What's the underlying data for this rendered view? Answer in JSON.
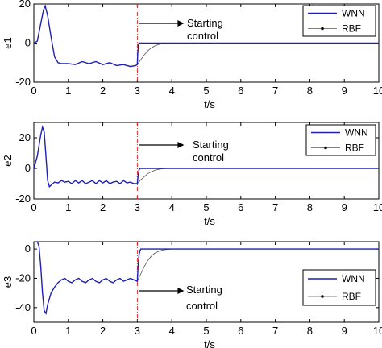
{
  "chart_data": [
    {
      "type": "line",
      "xlabel": "t/s",
      "ylabel": "e1",
      "xlim": [
        0,
        10
      ],
      "ylim": [
        -20,
        20
      ],
      "xticks": [
        "0",
        "1",
        "2",
        "3",
        "4",
        "5",
        "6",
        "7",
        "8",
        "9",
        "10"
      ],
      "yticks": [
        "20",
        "0",
        "-20"
      ],
      "grid": false,
      "legend_position": "top-right",
      "annotation": {
        "text_line1": "Starting",
        "text_line2": "control",
        "x": 3
      },
      "control_start_line": {
        "x": 3,
        "color": "#e03030",
        "style": "dash-dot"
      },
      "series": [
        {
          "name": "WNN",
          "color": "#1f1fb4",
          "x": [
            0,
            0.1,
            0.2,
            0.28,
            0.33,
            0.4,
            0.5,
            0.6,
            0.7,
            0.8,
            1.0,
            1.2,
            1.4,
            1.6,
            1.8,
            2.0,
            2.2,
            2.4,
            2.6,
            2.8,
            2.95,
            3.0,
            3.01,
            3.03,
            3.05,
            3.1,
            3.2,
            4.0,
            5.0,
            6.0,
            7.0,
            8.0,
            9.0,
            10.0
          ],
          "y": [
            0,
            1,
            10,
            17,
            19,
            14,
            3,
            -7,
            -10,
            -10.5,
            -10.5,
            -11,
            -9.5,
            -10.5,
            -9.5,
            -11,
            -10,
            -11.5,
            -11,
            -12,
            -11.5,
            -11,
            -6,
            -1,
            0,
            0,
            0,
            0,
            0,
            0,
            0,
            0,
            0,
            0
          ]
        },
        {
          "name": "RBF",
          "color": "#555555",
          "x": [
            3.0,
            3.1,
            3.2,
            3.3,
            3.4,
            3.5,
            3.6,
            3.7,
            3.8,
            4.0,
            5.0,
            10.0
          ],
          "y": [
            -11,
            -8.5,
            -6,
            -4,
            -2.5,
            -1.5,
            -0.8,
            -0.4,
            -0.2,
            0,
            0,
            0
          ]
        }
      ]
    },
    {
      "type": "line",
      "xlabel": "t/s",
      "ylabel": "e2",
      "xlim": [
        0,
        10
      ],
      "ylim": [
        -20,
        30
      ],
      "xticks": [
        "0",
        "1",
        "2",
        "3",
        "4",
        "5",
        "6",
        "7",
        "8",
        "9",
        "10"
      ],
      "yticks": [
        "20",
        "0",
        "-20"
      ],
      "grid": false,
      "legend_position": "top-right",
      "annotation": {
        "text_line1": "Starting",
        "text_line2": "control",
        "x": 3
      },
      "control_start_line": {
        "x": 3,
        "color": "#e03030",
        "style": "dash-dot"
      },
      "series": [
        {
          "name": "WNN",
          "color": "#1f1fb4",
          "x": [
            0,
            0.1,
            0.2,
            0.25,
            0.3,
            0.35,
            0.4,
            0.45,
            0.5,
            0.6,
            0.7,
            0.8,
            0.9,
            1.0,
            1.1,
            1.2,
            1.3,
            1.4,
            1.5,
            1.6,
            1.7,
            1.8,
            1.9,
            2.0,
            2.1,
            2.2,
            2.3,
            2.4,
            2.5,
            2.6,
            2.7,
            2.8,
            2.9,
            3.0,
            3.02,
            3.05,
            3.08,
            3.1,
            4.0,
            10.0
          ],
          "y": [
            0,
            8,
            22,
            27,
            24,
            8,
            -8,
            -12,
            -11,
            -9,
            -9.5,
            -8,
            -9,
            -8.5,
            -10,
            -8,
            -9.5,
            -8,
            -10,
            -9,
            -8,
            -10,
            -8,
            -9.5,
            -8,
            -10,
            -9,
            -8.5,
            -10,
            -8,
            -9.5,
            -9,
            -10,
            -10,
            -5,
            -1,
            0,
            0,
            0,
            0
          ]
        },
        {
          "name": "RBF",
          "color": "#555555",
          "x": [
            3.0,
            3.1,
            3.2,
            3.3,
            3.4,
            3.5,
            3.6,
            3.7,
            3.8,
            4.0,
            5.0,
            10.0
          ],
          "y": [
            -10,
            -7.5,
            -5.5,
            -3.5,
            -2.2,
            -1.3,
            -0.7,
            -0.3,
            -0.1,
            0,
            0,
            0
          ]
        }
      ]
    },
    {
      "type": "line",
      "xlabel": "t/s",
      "ylabel": "e3",
      "xlim": [
        0,
        10
      ],
      "ylim": [
        -50,
        5
      ],
      "xticks": [
        "0",
        "1",
        "2",
        "3",
        "4",
        "5",
        "6",
        "7",
        "8",
        "9",
        "10"
      ],
      "yticks": [
        "0",
        "-20",
        "-40"
      ],
      "grid": false,
      "legend_position": "bottom-right",
      "annotation": {
        "text_line1": "Starting",
        "text_line2": "control",
        "x": 3
      },
      "control_start_line": {
        "x": 3,
        "color": "#e03030",
        "style": "dash-dot"
      },
      "series": [
        {
          "name": "WNN",
          "color": "#1f1fb4",
          "x": [
            0,
            0.1,
            0.15,
            0.2,
            0.25,
            0.3,
            0.35,
            0.4,
            0.5,
            0.6,
            0.7,
            0.8,
            0.9,
            1.0,
            1.1,
            1.2,
            1.3,
            1.4,
            1.5,
            1.6,
            1.7,
            1.8,
            1.9,
            2.0,
            2.1,
            2.2,
            2.3,
            2.4,
            2.5,
            2.6,
            2.7,
            2.8,
            2.9,
            3.0,
            3.02,
            3.05,
            3.08,
            3.1,
            4.0,
            10.0
          ],
          "y": [
            6,
            5,
            2,
            -12,
            -30,
            -42,
            -44,
            -38,
            -30,
            -26,
            -23,
            -21,
            -20,
            -22,
            -23,
            -21,
            -20,
            -22,
            -23,
            -21,
            -20,
            -22,
            -23,
            -21,
            -20,
            -22,
            -23,
            -21,
            -20,
            -22,
            -21,
            -20,
            -21,
            -22,
            -12,
            -4,
            -1,
            0,
            0,
            0
          ]
        },
        {
          "name": "RBF",
          "color": "#555555",
          "x": [
            3.0,
            3.1,
            3.2,
            3.3,
            3.4,
            3.5,
            3.6,
            3.7,
            3.8,
            4.0,
            5.0,
            10.0
          ],
          "y": [
            -22,
            -17,
            -12,
            -8,
            -5,
            -3,
            -1.8,
            -0.9,
            -0.4,
            0,
            0,
            0
          ]
        }
      ]
    }
  ]
}
